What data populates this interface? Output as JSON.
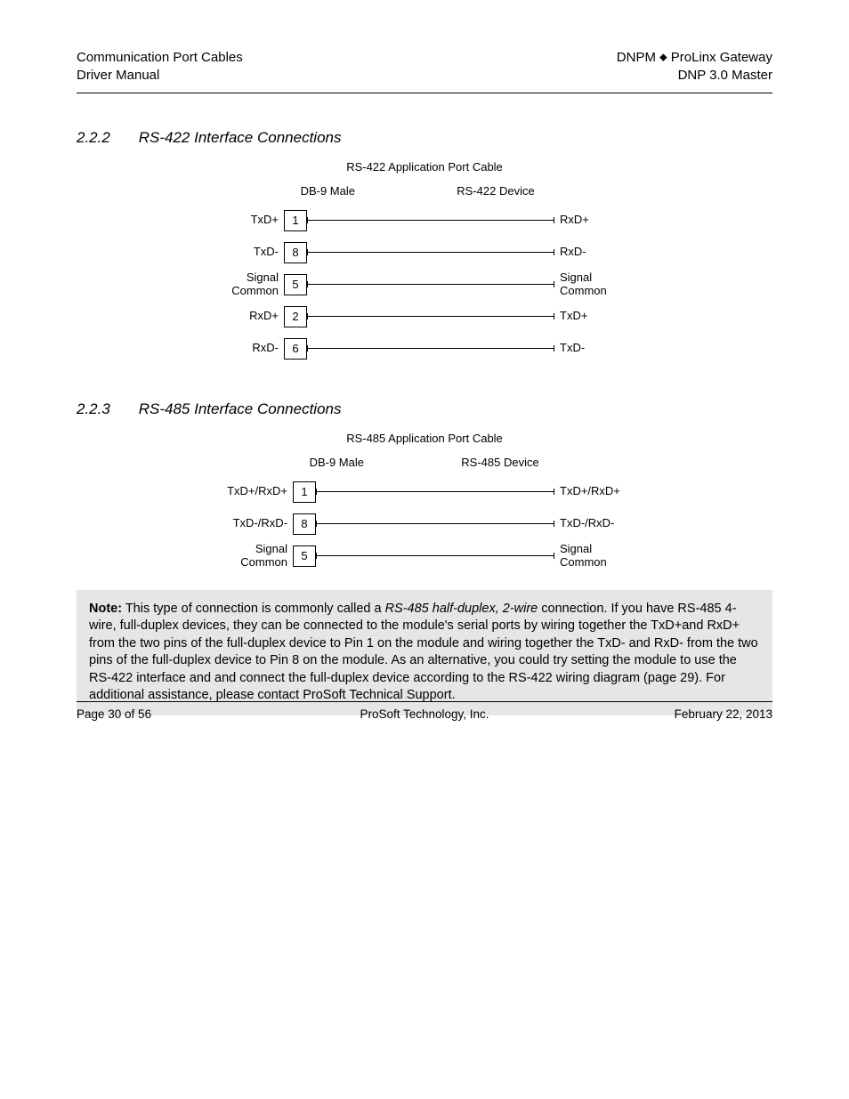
{
  "header": {
    "left_line1": "Communication Port Cables",
    "left_line2": "Driver Manual",
    "right_line1_a": "DNPM",
    "right_line1_b": "ProLinx Gateway",
    "right_line2": "DNP 3.0 Master"
  },
  "section_422": {
    "num": "2.2.2",
    "title": "RS-422 Interface Connections",
    "diag_title": "RS-422 Application Port Cable",
    "col_left": "DB-9 Male",
    "col_right": "RS-422 Device",
    "rows": [
      {
        "left": "TxD+",
        "pin": "1",
        "right": "RxD+"
      },
      {
        "left": "TxD-",
        "pin": "8",
        "right": "RxD-"
      },
      {
        "left": "Signal\nCommon",
        "pin": "5",
        "right": "Signal\nCommon"
      },
      {
        "left": "RxD+",
        "pin": "2",
        "right": "TxD+"
      },
      {
        "left": "RxD-",
        "pin": "6",
        "right": "TxD-"
      }
    ]
  },
  "section_485": {
    "num": "2.2.3",
    "title": "RS-485 Interface Connections",
    "diag_title": "RS-485 Application Port Cable",
    "col_left": "DB-9 Male",
    "col_right": "RS-485 Device",
    "rows": [
      {
        "left": "TxD+/RxD+",
        "pin": "1",
        "right": "TxD+/RxD+"
      },
      {
        "left": "TxD-/RxD-",
        "pin": "8",
        "right": "TxD-/RxD-"
      },
      {
        "left": "Signal\nCommon",
        "pin": "5",
        "right": "Signal\nCommon"
      }
    ]
  },
  "note": {
    "bold": "Note:",
    "text1": " This type of connection is commonly called a ",
    "italic": "RS-485 half-duplex, 2-wire",
    "text2": " connection. If you have RS-485 4-wire, full-duplex devices, they can be connected to the module's serial ports by wiring together the TxD+and RxD+ from the two pins of the full-duplex device to Pin 1 on the module and wiring together the TxD- and RxD- from the two pins of the full-duplex device to Pin 8 on the module. As an alternative, you could try setting the module to use the RS-422 interface and and connect the full-duplex device according to the RS-422 wiring diagram (page 29). For additional assistance, please contact ProSoft Technical Support."
  },
  "footer": {
    "left": "Page 30 of 56",
    "center": "ProSoft Technology, Inc.",
    "right": "February 22, 2013"
  }
}
